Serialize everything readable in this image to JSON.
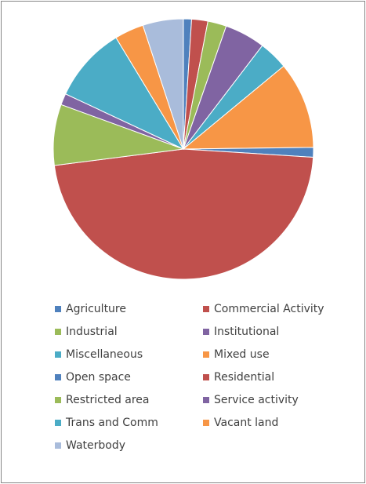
{
  "chart_data": {
    "type": "pie",
    "title": "",
    "legend_position": "bottom",
    "slices": [
      {
        "name": "Agriculture",
        "value": 1.0,
        "color": "#4F81BD"
      },
      {
        "name": "Commercial Activity",
        "value": 2.0,
        "color": "#C0504D"
      },
      {
        "name": "Industrial",
        "value": 2.3,
        "color": "#9BBB59"
      },
      {
        "name": "Institutional",
        "value": 5.0,
        "color": "#8064A2"
      },
      {
        "name": "Miscellaneous",
        "value": 3.6,
        "color": "#4BACC6"
      },
      {
        "name": "Mixed use",
        "value": 10.7,
        "color": "#F79646"
      },
      {
        "name": "Open space",
        "value": 1.2,
        "color": "#4F81BD"
      },
      {
        "name": "Residential",
        "value": 46.6,
        "color": "#C0504D"
      },
      {
        "name": "Restricted area",
        "value": 7.5,
        "color": "#9BBB59"
      },
      {
        "name": "Service activity",
        "value": 1.4,
        "color": "#8064A2"
      },
      {
        "name": "Trans and Comm",
        "value": 9.3,
        "color": "#4BACC6"
      },
      {
        "name": "Vacant land",
        "value": 3.6,
        "color": "#F79646"
      },
      {
        "name": "Waterbody",
        "value": 5.0,
        "color": "#A9BCDB"
      }
    ]
  }
}
